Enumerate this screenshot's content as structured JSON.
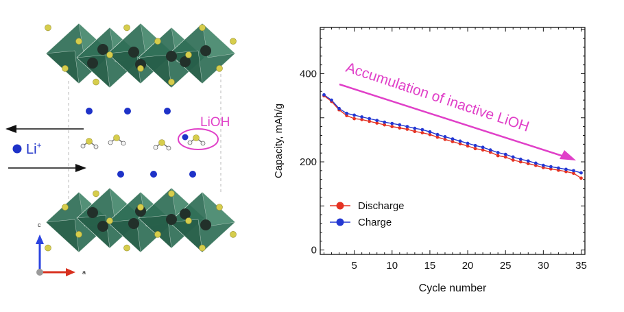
{
  "structure": {
    "ion_label": "Li",
    "ion_charge": "+",
    "species_label": "LiOH",
    "axis_c": "c",
    "axis_a": "a"
  },
  "colors": {
    "octahedron": "#2f6e56",
    "octahedron_light": "#5f9d82",
    "sulfur": "#d6cd4c",
    "metal": "#22302a",
    "lithium": "#1e32c8",
    "annotation": "#e040c8",
    "discharge": "#e53222",
    "charge": "#2438d2"
  },
  "chart_data": {
    "type": "line",
    "title": "",
    "xlabel": "Cycle number",
    "ylabel": "Capacity, mAh/g",
    "xlim": [
      0.5,
      35.5
    ],
    "ylim": [
      -10,
      505
    ],
    "xticks": [
      5,
      10,
      15,
      20,
      25,
      30,
      35
    ],
    "yticks": [
      0,
      200,
      400
    ],
    "grid": false,
    "legend_position": "bottom-left",
    "annotation": "Accumulation of inactive LiOH",
    "x": [
      1,
      2,
      3,
      4,
      5,
      6,
      7,
      8,
      9,
      10,
      11,
      12,
      13,
      14,
      15,
      16,
      17,
      18,
      19,
      20,
      21,
      22,
      23,
      24,
      25,
      26,
      27,
      28,
      29,
      30,
      31,
      32,
      33,
      34,
      35
    ],
    "series": [
      {
        "name": "Discharge",
        "color": "#e53222",
        "values": [
          350,
          337,
          318,
          305,
          298,
          296,
          292,
          288,
          284,
          280,
          277,
          274,
          269,
          266,
          262,
          256,
          251,
          246,
          241,
          236,
          230,
          227,
          222,
          214,
          211,
          204,
          200,
          196,
          192,
          187,
          184,
          181,
          178,
          174,
          163
        ]
      },
      {
        "name": "Charge",
        "color": "#2438d2",
        "values": [
          352,
          340,
          321,
          310,
          306,
          302,
          298,
          294,
          290,
          287,
          284,
          280,
          276,
          273,
          268,
          262,
          257,
          252,
          247,
          242,
          237,
          233,
          227,
          221,
          217,
          211,
          206,
          202,
          197,
          192,
          189,
          186,
          183,
          180,
          175
        ]
      }
    ]
  }
}
